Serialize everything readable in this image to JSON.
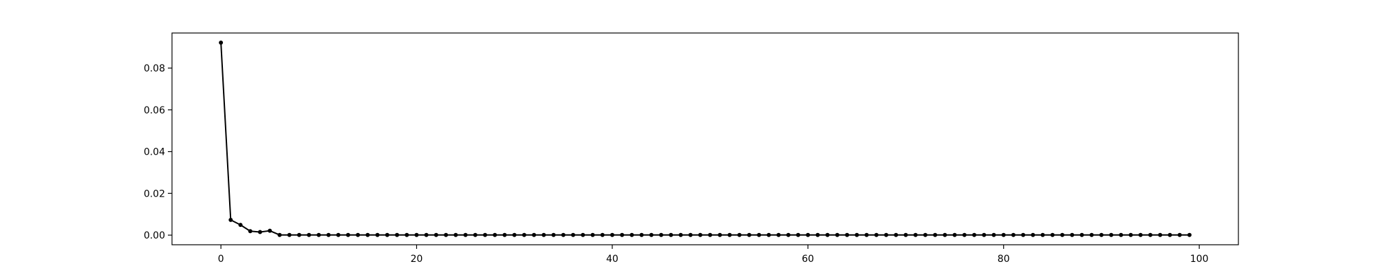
{
  "chart_data": {
    "type": "line",
    "title": "",
    "xlabel": "",
    "ylabel": "",
    "xlim": [
      -5,
      104
    ],
    "ylim": [
      -0.0046,
      0.0968
    ],
    "x_ticks": [
      0,
      20,
      40,
      60,
      80,
      100
    ],
    "x_tick_labels": [
      "0",
      "20",
      "40",
      "60",
      "80",
      "100"
    ],
    "y_ticks": [
      0.0,
      0.02,
      0.04,
      0.06,
      0.08
    ],
    "y_tick_labels": [
      "0.00",
      "0.02",
      "0.04",
      "0.06",
      "0.08"
    ],
    "grid": false,
    "legend": false,
    "line_color": "#000000",
    "marker": "circle",
    "series": [
      {
        "x_start": 0,
        "x_step": 1,
        "values": [
          0.0922,
          0.0073,
          0.0049,
          0.0019,
          0.0015,
          0.0021,
          0.0001,
          0.0001,
          0.0001,
          0.0001,
          0.0001,
          0.0001,
          0.0001,
          0.0001,
          0.0001,
          0.0001,
          0.0001,
          0.0001,
          0.0001,
          0.0001,
          0.0001,
          0.0001,
          0.0001,
          0.0001,
          0.0001,
          0.0001,
          0.0001,
          0.0001,
          0.0001,
          0.0001,
          0.0001,
          0.0001,
          0.0001,
          0.0001,
          0.0001,
          0.0001,
          0.0001,
          0.0001,
          0.0001,
          0.0001,
          0.0001,
          0.0001,
          0.0001,
          0.0001,
          0.0001,
          0.0001,
          0.0001,
          0.0001,
          0.0001,
          0.0001,
          0.0001,
          0.0001,
          0.0001,
          0.0001,
          0.0001,
          0.0001,
          0.0001,
          0.0001,
          0.0001,
          0.0001,
          0.0001,
          0.0001,
          0.0001,
          0.0001,
          0.0001,
          0.0001,
          0.0001,
          0.0001,
          0.0001,
          0.0001,
          0.0001,
          0.0001,
          0.0001,
          0.0001,
          0.0001,
          0.0001,
          0.0001,
          0.0001,
          0.0001,
          0.0001,
          0.0001,
          0.0001,
          0.0001,
          0.0001,
          0.0001,
          0.0001,
          0.0001,
          0.0001,
          0.0001,
          0.0001,
          0.0001,
          0.0001,
          0.0001,
          0.0001,
          0.0001,
          0.0001,
          0.0001,
          0.0001,
          0.0001,
          0.0001
        ]
      }
    ]
  }
}
